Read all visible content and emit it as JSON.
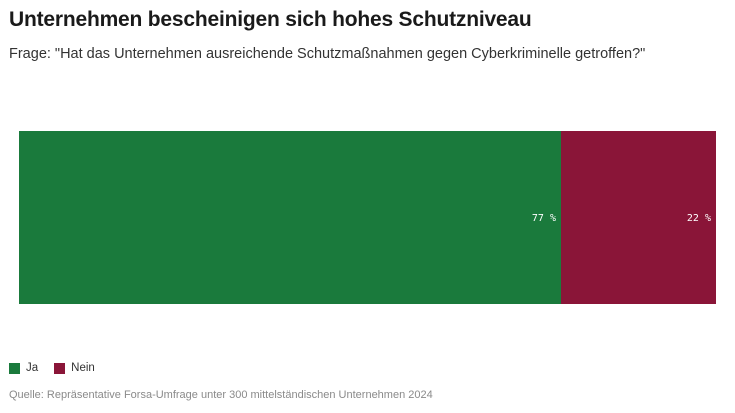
{
  "chart_data": {
    "type": "bar",
    "orientation": "horizontal-stacked",
    "title": "Unternehmen bescheinigen sich hohes Schutzniveau",
    "subtitle": "Frage: \"Hat das Unternehmen ausreichende Schutzmaßnahmen gegen Cyberkriminelle getroffen?\"",
    "series": [
      {
        "name": "Ja",
        "value": 77,
        "label": "77 %",
        "color": "#1a7a3c"
      },
      {
        "name": "Nein",
        "value": 22,
        "label": "22 %",
        "color": "#8a1538"
      }
    ],
    "legend_position": "bottom-left",
    "grid": false,
    "source": "Quelle: Repräsentative Forsa-Umfrage unter 300 mittelständischen Unternehmen 2024"
  }
}
